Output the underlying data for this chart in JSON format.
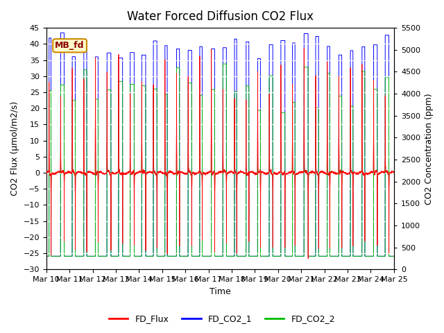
{
  "title": "Water Forced Diffusion CO2 Flux",
  "xlabel": "Time",
  "ylabel_left": "CO2 Flux (μmol/m2/s)",
  "ylabel_right": "CO2 Concentration (ppm)",
  "ylim_left": [
    -30,
    45
  ],
  "ylim_right": [
    0,
    5500
  ],
  "yticks_left": [
    -30,
    -25,
    -20,
    -15,
    -10,
    -5,
    0,
    5,
    10,
    15,
    20,
    25,
    30,
    35,
    40,
    45
  ],
  "yticks_right": [
    0,
    500,
    1000,
    1500,
    2000,
    2500,
    3000,
    3500,
    4000,
    4500,
    5000,
    5500
  ],
  "xtick_labels": [
    "Mar 10",
    "Mar 11",
    "Mar 12",
    "Mar 13",
    "Mar 14",
    "Mar 15",
    "Mar 16",
    "Mar 17",
    "Mar 18",
    "Mar 19",
    "Mar 20",
    "Mar 21",
    "Mar 22",
    "Mar 23",
    "Mar 24",
    "Mar 25"
  ],
  "flux_color": "#ff0000",
  "co2_1_color": "#0000ff",
  "co2_2_color": "#00bb00",
  "legend_labels": [
    "FD_Flux",
    "FD_CO2_1",
    "FD_CO2_2"
  ],
  "annotation_text": "MB_fd",
  "bg_color": "#d8d8d8",
  "n_days": 15,
  "pts_per_day": 288,
  "title_fontsize": 12,
  "label_fontsize": 9,
  "tick_fontsize": 8
}
